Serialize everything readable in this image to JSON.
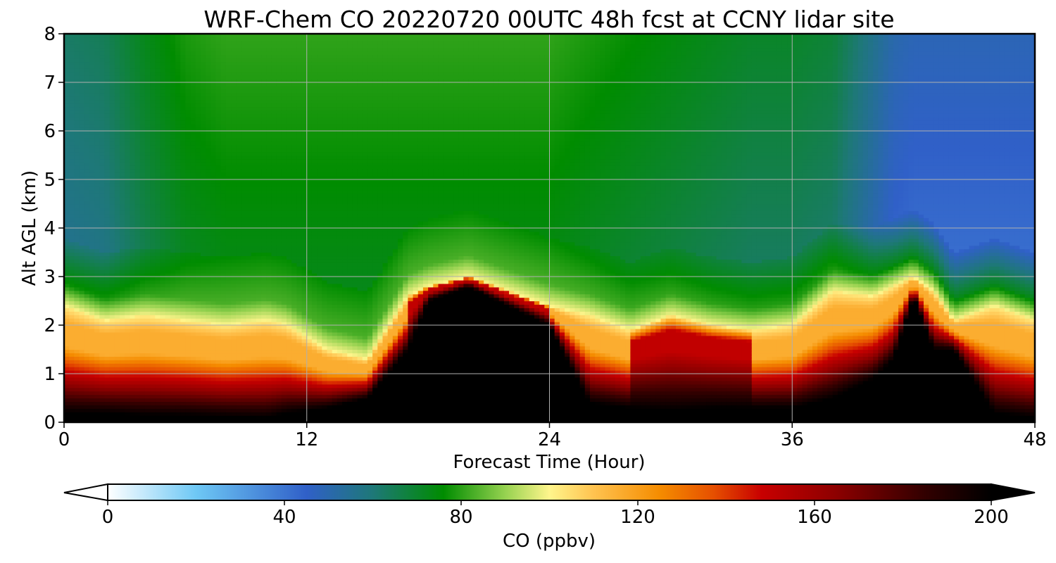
{
  "chart_data": {
    "type": "heatmap",
    "subtype": "filled-contour (time–height curtain)",
    "title": "WRF-Chem CO  20220720 00UTC 48h fcst at CCNY lidar site",
    "xlabel": "Forecast Time (Hour)",
    "ylabel": "Alt AGL (km)",
    "xlim": [
      0,
      48
    ],
    "ylim": [
      0,
      8
    ],
    "xticks": [
      "0",
      "12",
      "24",
      "36",
      "48"
    ],
    "yticks": [
      "0",
      "1",
      "2",
      "3",
      "4",
      "5",
      "6",
      "7",
      "8"
    ],
    "grid": true,
    "colorbar": {
      "label": "CO  (ppbv)",
      "orientation": "horizontal",
      "range": [
        0,
        200
      ],
      "ticks": [
        "0",
        "40",
        "80",
        "120",
        "160",
        "200"
      ],
      "extend": "both",
      "stops": [
        {
          "v": 0,
          "color": "#ffffff"
        },
        {
          "v": 20,
          "color": "#6ec8f5"
        },
        {
          "v": 45,
          "color": "#3060c8"
        },
        {
          "v": 60,
          "color": "#1e7878"
        },
        {
          "v": 76,
          "color": "#008c00"
        },
        {
          "v": 90,
          "color": "#96d250"
        },
        {
          "v": 100,
          "color": "#fff58c"
        },
        {
          "v": 110,
          "color": "#ffc350"
        },
        {
          "v": 125,
          "color": "#f58c00"
        },
        {
          "v": 137,
          "color": "#e65000"
        },
        {
          "v": 148,
          "color": "#c80000"
        },
        {
          "v": 165,
          "color": "#8c0000"
        },
        {
          "v": 185,
          "color": "#320000"
        },
        {
          "v": 200,
          "color": "#000000"
        }
      ]
    },
    "sample_hours": [
      0,
      2,
      4,
      6,
      8,
      10,
      11,
      13,
      15,
      17,
      18,
      20,
      22,
      24,
      26,
      28,
      30,
      32,
      34,
      36,
      38,
      40,
      41,
      42,
      43,
      44,
      46,
      48
    ],
    "boundary_layer_top_km": [
      2.4,
      2.1,
      2.2,
      2.1,
      2.0,
      2.1,
      2.0,
      1.5,
      1.3,
      2.6,
      2.8,
      3.0,
      2.7,
      2.4,
      2.2,
      1.9,
      2.2,
      2.0,
      1.9,
      2.0,
      2.7,
      2.6,
      2.8,
      3.0,
      2.7,
      2.1,
      2.4,
      2.1
    ],
    "surface_layer_top_km": [
      0.2,
      0.2,
      0.15,
      0.15,
      0.12,
      0.1,
      0.2,
      0.3,
      0.5,
      1.5,
      2.5,
      2.8,
      2.4,
      2.0,
      0.4,
      0.3,
      0.25,
      0.3,
      0.3,
      0.3,
      0.5,
      0.9,
      1.3,
      2.6,
      1.5,
      1.5,
      0.2,
      0.1
    ],
    "upper_co_ppbv_at_5km": [
      58,
      60,
      68,
      74,
      76,
      76,
      76,
      76,
      76,
      76,
      76,
      76,
      76,
      76,
      74,
      72,
      70,
      68,
      66,
      66,
      64,
      52,
      46,
      44,
      44,
      44,
      44,
      44
    ]
  }
}
